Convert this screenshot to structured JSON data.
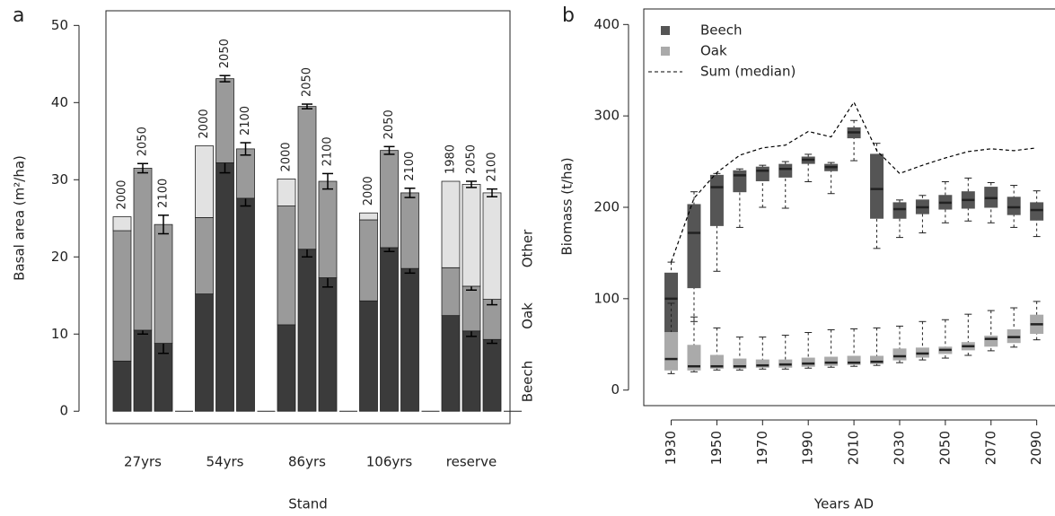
{
  "chart_data": [
    {
      "type": "bar",
      "stacked": true,
      "panel": "a",
      "xlabel": "Stand",
      "ylabel": "Basal area (m²/ha)",
      "groups": [
        "27yrs",
        "54yrs",
        "86yrs",
        "106yrs",
        "reserve"
      ],
      "categories": [
        "2000",
        "2050",
        "2100",
        "2000",
        "2050",
        "2100",
        "2000",
        "2050",
        "2100",
        "2000",
        "2050",
        "2100",
        "1980",
        "2050",
        "2100"
      ],
      "series": [
        {
          "name": "Beech",
          "color": "#3b3b3b",
          "values": [
            6.5,
            10.5,
            8.8,
            15.2,
            32.2,
            27.6,
            11.2,
            21.0,
            17.3,
            14.3,
            21.2,
            18.5,
            12.4,
            10.4,
            9.3
          ],
          "errors": [
            null,
            0.5,
            1.3,
            null,
            1.3,
            1.0,
            null,
            1.0,
            1.2,
            null,
            0.5,
            0.6,
            null,
            0.7,
            0.5
          ]
        },
        {
          "name": "Oak",
          "color": "#9a9a9a",
          "values": [
            16.9,
            21.0,
            15.4,
            9.9,
            10.9,
            6.4,
            15.4,
            18.5,
            12.5,
            10.5,
            12.6,
            9.8,
            6.2,
            5.8,
            5.2
          ],
          "errors": [
            null,
            0.6,
            1.2,
            null,
            0.4,
            0.8,
            null,
            0.3,
            1.0,
            null,
            0.5,
            0.6,
            null,
            0.5,
            0.7
          ]
        },
        {
          "name": "Other",
          "color": "#e2e2e2",
          "values": [
            1.8,
            null,
            null,
            9.3,
            null,
            null,
            3.5,
            null,
            null,
            0.9,
            null,
            null,
            11.2,
            13.2,
            13.8
          ],
          "errors": [
            null,
            null,
            null,
            null,
            null,
            null,
            null,
            null,
            null,
            null,
            null,
            null,
            null,
            0.4,
            0.5
          ]
        }
      ],
      "ylim": [
        -1.6,
        51.9
      ],
      "yticks": [
        0,
        10,
        20,
        30,
        40,
        50
      ]
    },
    {
      "type": "box",
      "panel": "b",
      "xlabel": "Years AD",
      "ylabel": "Biomass (t/ha)",
      "x": [
        1930,
        1940,
        1950,
        1960,
        1970,
        1980,
        1990,
        2000,
        2010,
        2020,
        2030,
        2040,
        2050,
        2060,
        2070,
        2080,
        2090
      ],
      "xlim": [
        1918,
        2098
      ],
      "xticks": [
        1930,
        1950,
        1970,
        1990,
        2010,
        2030,
        2050,
        2070,
        2090
      ],
      "ylim": [
        -17,
        417
      ],
      "yticks": [
        0,
        100,
        200,
        300,
        400
      ],
      "series": [
        {
          "name": "Beech",
          "color": "#555555",
          "boxes": [
            [
              25,
              33,
              100,
              128,
              140
            ],
            [
              75,
              112,
              172,
              203,
              217
            ],
            [
              130,
              180,
              222,
              235,
              237
            ],
            [
              178,
              217,
              235,
              240,
              242
            ],
            [
              200,
              229,
              240,
              244,
              246
            ],
            [
              199,
              233,
              242,
              247,
              250
            ],
            [
              228,
              248,
              252,
              255,
              258
            ],
            [
              215,
              240,
              244,
              247,
              249
            ],
            [
              251,
              276,
              282,
              287,
              295
            ],
            [
              155,
              188,
              220,
              258,
              270
            ],
            [
              167,
              188,
              198,
              205,
              208
            ],
            [
              172,
              193,
              200,
              208,
              213
            ],
            [
              183,
              198,
              205,
              213,
              228
            ],
            [
              185,
              199,
              208,
              217,
              232
            ],
            [
              183,
              200,
              210,
              222,
              227
            ],
            [
              178,
              192,
              200,
              211,
              224
            ],
            [
              168,
              186,
              197,
              205,
              218
            ]
          ]
        },
        {
          "name": "Oak",
          "color": "#aaaaaa",
          "boxes": [
            [
              18,
              22,
              34,
              63,
              95
            ],
            [
              20,
              22,
              26,
              49,
              80
            ],
            [
              22,
              24,
              26,
              38,
              68
            ],
            [
              22,
              24,
              26,
              34,
              58
            ],
            [
              23,
              25,
              27,
              33,
              58
            ],
            [
              23,
              25,
              28,
              33,
              60
            ],
            [
              24,
              26,
              29,
              35,
              63
            ],
            [
              25,
              27,
              30,
              36,
              66
            ],
            [
              26,
              28,
              30,
              37,
              67
            ],
            [
              27,
              29,
              31,
              37,
              68
            ],
            [
              30,
              33,
              37,
              45,
              70
            ],
            [
              33,
              36,
              40,
              46,
              75
            ],
            [
              35,
              40,
              44,
              47,
              77
            ],
            [
              38,
              44,
              48,
              52,
              83
            ],
            [
              43,
              48,
              56,
              59,
              87
            ],
            [
              47,
              52,
              58,
              66,
              90
            ],
            [
              55,
              62,
              72,
              82,
              97
            ]
          ]
        },
        {
          "name": "Sum (median)",
          "color": "#000000",
          "dashed": true,
          "values": [
            140,
            210,
            238,
            257,
            265,
            268,
            283,
            277,
            315,
            262,
            237,
            246,
            254,
            261,
            264,
            262,
            265
          ]
        }
      ]
    }
  ]
}
